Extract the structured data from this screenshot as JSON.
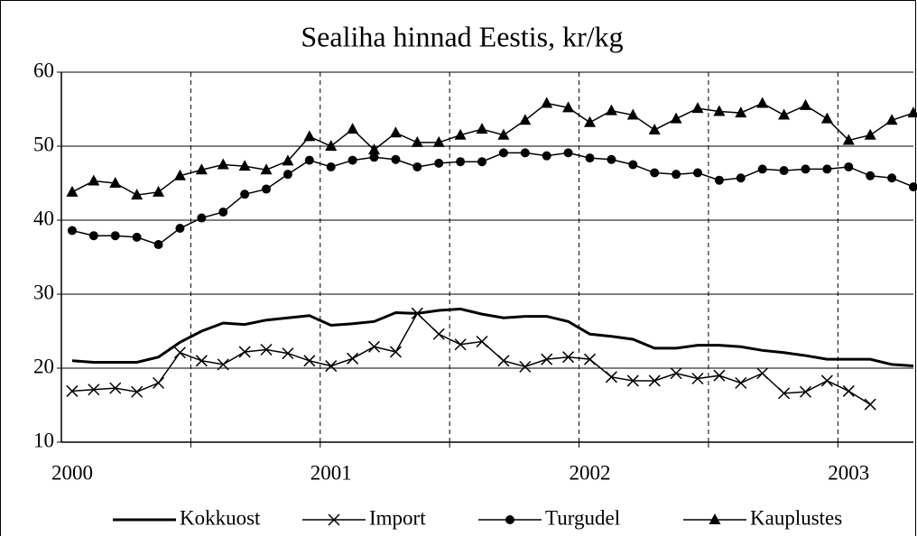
{
  "chart_data": {
    "type": "line",
    "title": "Sealiha hinnad Eestis, kr/kg",
    "x": [
      0,
      1,
      2,
      3,
      4,
      5,
      6,
      7,
      8,
      9,
      10,
      11,
      12,
      13,
      14,
      15,
      16,
      17,
      18,
      19,
      20,
      21,
      22,
      23,
      24,
      25,
      26,
      27,
      28,
      29,
      30,
      31,
      32,
      33,
      34,
      35,
      36,
      37,
      38,
      39
    ],
    "series": [
      {
        "name": "Kokkuost",
        "color": "#000000",
        "marker": "none",
        "values": [
          21.0,
          20.8,
          20.8,
          20.8,
          21.5,
          23.5,
          25.0,
          26.1,
          25.9,
          26.5,
          26.8,
          27.1,
          25.8,
          26.0,
          26.3,
          27.5,
          27.4,
          27.8,
          28.0,
          27.3,
          26.8,
          27.0,
          27.0,
          26.3,
          24.6,
          24.3,
          23.9,
          22.7,
          22.7,
          23.1,
          23.1,
          22.9,
          22.4,
          22.1,
          21.7,
          21.2,
          21.2,
          21.2,
          20.5,
          20.3
        ]
      },
      {
        "name": "Import",
        "color": "#000000",
        "marker": "x",
        "values": [
          16.9,
          17.1,
          17.3,
          16.8,
          18.0,
          22.1,
          21.0,
          20.5,
          22.2,
          22.5,
          22.0,
          21.0,
          20.3,
          21.3,
          22.9,
          22.2,
          27.4,
          24.6,
          23.2,
          23.6,
          21.0,
          20.2,
          21.2,
          21.5,
          21.2,
          18.8,
          18.3,
          18.3,
          19.3,
          18.6,
          19.0,
          18.0,
          19.3,
          16.6,
          16.8,
          18.3,
          16.9,
          15.1,
          null,
          null
        ]
      },
      {
        "name": "Turgudel",
        "color": "#000000",
        "marker": "circle",
        "values": [
          38.6,
          37.9,
          37.9,
          37.7,
          36.7,
          38.9,
          40.3,
          41.1,
          43.5,
          44.2,
          46.2,
          48.1,
          47.2,
          48.1,
          48.5,
          48.2,
          47.2,
          47.7,
          47.9,
          47.9,
          49.1,
          49.1,
          48.7,
          49.1,
          48.4,
          48.2,
          47.5,
          46.4,
          46.2,
          46.4,
          45.4,
          45.7,
          46.9,
          46.7,
          46.9,
          46.9,
          47.2,
          46.0,
          45.7,
          44.5
        ]
      },
      {
        "name": "Kauplustes",
        "color": "#000000",
        "marker": "triangle",
        "values": [
          43.8,
          45.3,
          45.0,
          43.4,
          43.8,
          46.0,
          46.8,
          47.5,
          47.3,
          46.8,
          48.0,
          51.3,
          50.0,
          52.3,
          49.5,
          51.8,
          50.5,
          50.5,
          51.5,
          52.3,
          51.5,
          53.5,
          55.8,
          55.2,
          53.2,
          54.8,
          54.2,
          52.2,
          53.7,
          55.1,
          54.7,
          54.5,
          55.8,
          54.2,
          55.5,
          53.7,
          50.8,
          51.5,
          53.5,
          54.5
        ]
      }
    ],
    "xlim": [
      -0.5,
      39
    ],
    "xticks": [
      {
        "value": 0,
        "label": "2000"
      },
      {
        "value": 12,
        "label": "2001"
      },
      {
        "value": 24,
        "label": "2002"
      },
      {
        "value": 36,
        "label": "2003"
      }
    ],
    "x_gridlines": [
      5.5,
      11.5,
      17.5,
      23.5,
      29.5,
      35.5
    ],
    "ylim": [
      10,
      60
    ],
    "yticks": [
      10,
      20,
      30,
      40,
      50,
      60
    ],
    "grid": true,
    "legend": "bottom"
  }
}
